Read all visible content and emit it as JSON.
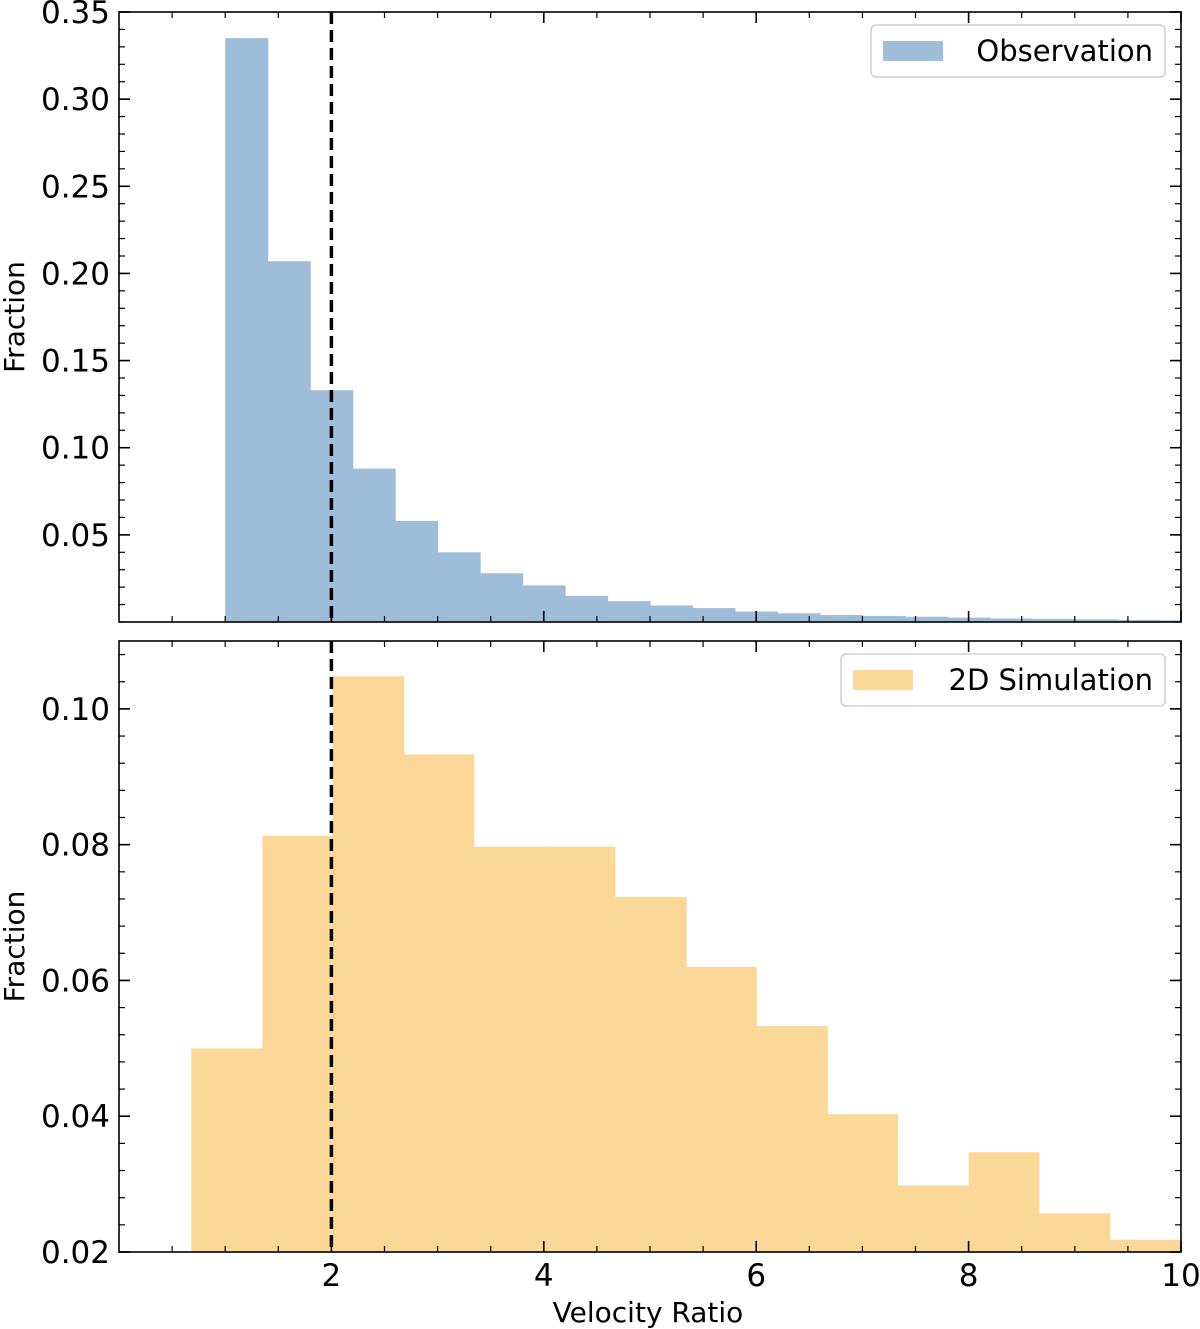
{
  "chart_data": [
    {
      "type": "bar",
      "name": "observation-panel",
      "title": "",
      "xlabel": "",
      "ylabel": "Fraction",
      "xlim": [
        0,
        10
      ],
      "ylim": [
        0,
        0.35
      ],
      "yticks": [
        0.05,
        0.1,
        0.15,
        0.2,
        0.25,
        0.3,
        0.35
      ],
      "ytick_labels": [
        "0.05",
        "0.10",
        "0.15",
        "0.20",
        "0.25",
        "0.30",
        "0.35"
      ],
      "series": [
        {
          "name": "Observation",
          "color": "#9fbdd9",
          "bin_edges": [
            1.0,
            1.4,
            1.8,
            2.2,
            2.6,
            3.0,
            3.4,
            3.8,
            4.2,
            4.6,
            5.0,
            5.4,
            5.8,
            6.2,
            6.6,
            7.0,
            7.4,
            7.8,
            8.2,
            8.6,
            9.0,
            9.4,
            9.8,
            10.0
          ],
          "values": [
            0.335,
            0.207,
            0.133,
            0.088,
            0.058,
            0.04,
            0.028,
            0.021,
            0.015,
            0.012,
            0.0095,
            0.008,
            0.006,
            0.005,
            0.004,
            0.0035,
            0.003,
            0.0025,
            0.002,
            0.0018,
            0.0015,
            0.0012,
            0.001
          ]
        }
      ],
      "vline": {
        "x": 2,
        "style": "dashed",
        "color": "#000000"
      },
      "legend": {
        "position": "top-right",
        "label": "Observation"
      }
    },
    {
      "type": "bar",
      "name": "simulation-panel",
      "title": "",
      "xlabel": "Velocity Ratio",
      "ylabel": "Fraction",
      "xlim": [
        0,
        10
      ],
      "ylim": [
        0.02,
        0.11
      ],
      "xticks": [
        2,
        4,
        6,
        8,
        10
      ],
      "xtick_labels": [
        "2",
        "4",
        "6",
        "8",
        "10"
      ],
      "yticks": [
        0.02,
        0.04,
        0.06,
        0.08,
        0.1
      ],
      "ytick_labels": [
        "0.02",
        "0.04",
        "0.06",
        "0.08",
        "0.10"
      ],
      "series": [
        {
          "name": "2D Simulation",
          "color": "#fcd898",
          "bin_edges": [
            0.68,
            1.35,
            2.01,
            2.68,
            3.34,
            4.01,
            4.67,
            5.34,
            6.0,
            6.67,
            7.33,
            8.0,
            8.66,
            9.33,
            10.0
          ],
          "values": [
            0.05,
            0.0813,
            0.1048,
            0.0933,
            0.0797,
            0.0797,
            0.0723,
            0.062,
            0.0533,
            0.0403,
            0.0298,
            0.0347,
            0.0257,
            0.0218
          ]
        }
      ],
      "vline": {
        "x": 2,
        "style": "dashed",
        "color": "#000000"
      },
      "legend": {
        "position": "top-right",
        "label": "2D Simulation"
      }
    }
  ]
}
